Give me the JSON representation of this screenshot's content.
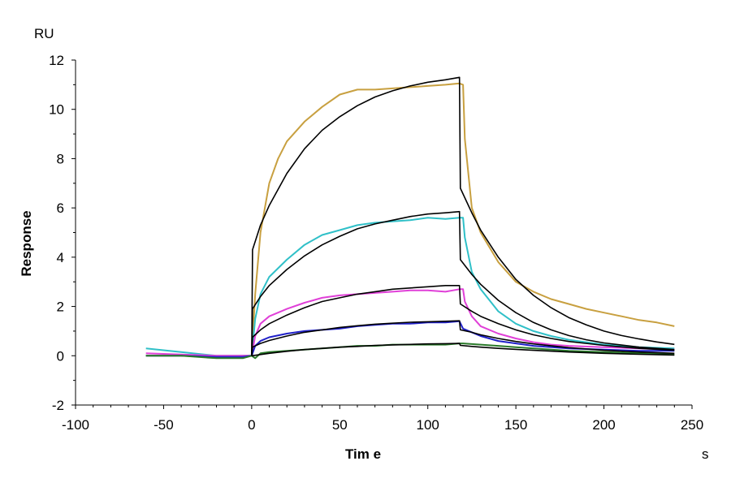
{
  "chart_data": {
    "type": "line",
    "ylabel": "Response",
    "xlabel": "Tim e",
    "y_unit": "RU",
    "x_unit": "s",
    "xlim": [
      -100,
      250
    ],
    "ylim": [
      -2,
      12
    ],
    "x_ticks": [
      -100,
      -50,
      0,
      50,
      100,
      150,
      200,
      250
    ],
    "y_ticks": [
      -2,
      0,
      2,
      4,
      6,
      8,
      10,
      12
    ],
    "grid": false,
    "legend": "none",
    "series": [
      {
        "color": "#c8a040",
        "kind": "measured",
        "x": [
          -60,
          -40,
          -20,
          -5,
          0,
          2,
          5,
          10,
          15,
          20,
          30,
          40,
          50,
          60,
          70,
          80,
          90,
          100,
          110,
          118,
          120,
          121,
          125,
          130,
          140,
          150,
          160,
          170,
          180,
          190,
          200,
          210,
          220,
          230,
          240
        ],
        "y": [
          0.0,
          0.0,
          -0.05,
          0.0,
          0.0,
          2.5,
          5.0,
          7.0,
          8.0,
          8.7,
          9.5,
          10.1,
          10.6,
          10.8,
          10.8,
          10.85,
          10.9,
          10.95,
          11.0,
          11.05,
          11.0,
          8.8,
          6.0,
          5.0,
          3.8,
          3.0,
          2.6,
          2.3,
          2.1,
          1.9,
          1.75,
          1.6,
          1.45,
          1.35,
          1.2
        ]
      },
      {
        "color": "#30c0c8",
        "kind": "measured",
        "x": [
          -60,
          -40,
          -20,
          -5,
          0,
          2,
          5,
          10,
          20,
          30,
          40,
          50,
          60,
          70,
          80,
          90,
          100,
          110,
          118,
          120,
          121,
          125,
          130,
          140,
          150,
          160,
          170,
          180,
          190,
          200,
          220,
          240
        ],
        "y": [
          0.3,
          0.15,
          0.0,
          0.0,
          0.0,
          1.5,
          2.5,
          3.2,
          3.9,
          4.5,
          4.9,
          5.1,
          5.3,
          5.4,
          5.45,
          5.5,
          5.6,
          5.55,
          5.6,
          5.6,
          4.8,
          3.4,
          2.7,
          1.8,
          1.3,
          1.0,
          0.8,
          0.65,
          0.55,
          0.45,
          0.35,
          0.3
        ]
      },
      {
        "color": "#e040d8",
        "kind": "measured",
        "x": [
          -60,
          -40,
          -20,
          -5,
          0,
          2,
          5,
          10,
          20,
          30,
          40,
          50,
          60,
          70,
          80,
          90,
          100,
          110,
          118,
          120,
          121,
          125,
          130,
          140,
          150,
          160,
          170,
          180,
          200,
          220,
          240
        ],
        "y": [
          0.1,
          0.05,
          0.0,
          0.0,
          0.0,
          0.8,
          1.3,
          1.6,
          1.9,
          2.15,
          2.35,
          2.45,
          2.5,
          2.55,
          2.6,
          2.65,
          2.65,
          2.6,
          2.7,
          2.7,
          2.2,
          1.6,
          1.2,
          0.9,
          0.7,
          0.55,
          0.45,
          0.4,
          0.35,
          0.3,
          0.25
        ]
      },
      {
        "color": "#2020c8",
        "kind": "measured",
        "x": [
          -60,
          -40,
          -20,
          -5,
          0,
          2,
          5,
          10,
          20,
          30,
          40,
          50,
          60,
          70,
          80,
          90,
          100,
          110,
          118,
          120,
          125,
          130,
          140,
          150,
          160,
          180,
          200,
          220,
          240
        ],
        "y": [
          0.0,
          0.0,
          -0.05,
          -0.05,
          0.0,
          0.4,
          0.6,
          0.75,
          0.9,
          1.0,
          1.05,
          1.1,
          1.2,
          1.25,
          1.3,
          1.3,
          1.35,
          1.35,
          1.4,
          1.1,
          0.95,
          0.8,
          0.6,
          0.5,
          0.4,
          0.3,
          0.25,
          0.2,
          0.2
        ]
      },
      {
        "color": "#2a7a2a",
        "kind": "measured",
        "x": [
          -60,
          -40,
          -20,
          -5,
          0,
          2,
          5,
          10,
          20,
          30,
          40,
          50,
          60,
          70,
          80,
          90,
          100,
          110,
          118,
          120,
          130,
          140,
          150,
          160,
          180,
          200,
          220,
          240
        ],
        "y": [
          0.0,
          0.0,
          -0.1,
          -0.1,
          0.0,
          -0.1,
          0.1,
          0.15,
          0.2,
          0.25,
          0.3,
          0.35,
          0.4,
          0.4,
          0.45,
          0.45,
          0.45,
          0.45,
          0.5,
          0.5,
          0.45,
          0.4,
          0.35,
          0.3,
          0.2,
          0.15,
          0.1,
          0.05
        ]
      },
      {
        "color": "#000000",
        "kind": "fit",
        "x": [
          0,
          0.5,
          5,
          10,
          20,
          30,
          40,
          50,
          60,
          70,
          80,
          90,
          100,
          110,
          118,
          118.5,
          125,
          130,
          140,
          150,
          160,
          170,
          180,
          190,
          200,
          210,
          220,
          230,
          240
        ],
        "y": [
          0.0,
          4.3,
          5.3,
          6.1,
          7.4,
          8.4,
          9.15,
          9.7,
          10.15,
          10.5,
          10.75,
          10.95,
          11.1,
          11.2,
          11.3,
          6.8,
          5.8,
          5.1,
          4.0,
          3.1,
          2.45,
          1.95,
          1.55,
          1.25,
          1.0,
          0.82,
          0.68,
          0.56,
          0.46
        ]
      },
      {
        "color": "#000000",
        "kind": "fit",
        "x": [
          0,
          0.5,
          5,
          10,
          20,
          30,
          40,
          50,
          60,
          70,
          80,
          90,
          100,
          110,
          118,
          118.5,
          125,
          130,
          140,
          150,
          160,
          170,
          180,
          190,
          200,
          220,
          240
        ],
        "y": [
          0.0,
          1.9,
          2.4,
          2.85,
          3.5,
          4.05,
          4.5,
          4.85,
          5.15,
          5.35,
          5.5,
          5.65,
          5.75,
          5.8,
          5.85,
          3.9,
          3.3,
          2.9,
          2.25,
          1.75,
          1.35,
          1.05,
          0.82,
          0.65,
          0.52,
          0.35,
          0.25
        ]
      },
      {
        "color": "#000000",
        "kind": "fit",
        "x": [
          0,
          0.5,
          5,
          10,
          20,
          30,
          40,
          50,
          60,
          70,
          80,
          90,
          100,
          110,
          118,
          118.5,
          125,
          130,
          140,
          150,
          160,
          170,
          180,
          200,
          220,
          240
        ],
        "y": [
          0.0,
          0.75,
          1.05,
          1.3,
          1.65,
          1.95,
          2.2,
          2.35,
          2.5,
          2.6,
          2.7,
          2.75,
          2.8,
          2.85,
          2.85,
          2.1,
          1.8,
          1.6,
          1.3,
          1.05,
          0.85,
          0.7,
          0.58,
          0.42,
          0.3,
          0.22
        ]
      },
      {
        "color": "#000000",
        "kind": "fit",
        "x": [
          0,
          0.5,
          5,
          10,
          20,
          30,
          40,
          50,
          60,
          70,
          80,
          90,
          100,
          110,
          118,
          118.5,
          125,
          130,
          140,
          150,
          160,
          180,
          200,
          220,
          240
        ],
        "y": [
          0.0,
          0.35,
          0.5,
          0.62,
          0.8,
          0.95,
          1.05,
          1.15,
          1.22,
          1.28,
          1.32,
          1.36,
          1.38,
          1.4,
          1.42,
          1.05,
          0.95,
          0.85,
          0.7,
          0.58,
          0.48,
          0.33,
          0.22,
          0.15,
          0.1
        ]
      },
      {
        "color": "#000000",
        "kind": "fit",
        "x": [
          0,
          5,
          10,
          20,
          30,
          40,
          50,
          60,
          70,
          80,
          90,
          100,
          110,
          118,
          118.5,
          125,
          130,
          140,
          150,
          160,
          180,
          200,
          220,
          240
        ],
        "y": [
          0.0,
          0.05,
          0.1,
          0.18,
          0.25,
          0.3,
          0.35,
          0.38,
          0.42,
          0.44,
          0.46,
          0.48,
          0.49,
          0.5,
          0.42,
          0.38,
          0.35,
          0.3,
          0.26,
          0.22,
          0.15,
          0.1,
          0.06,
          0.03
        ]
      }
    ]
  }
}
